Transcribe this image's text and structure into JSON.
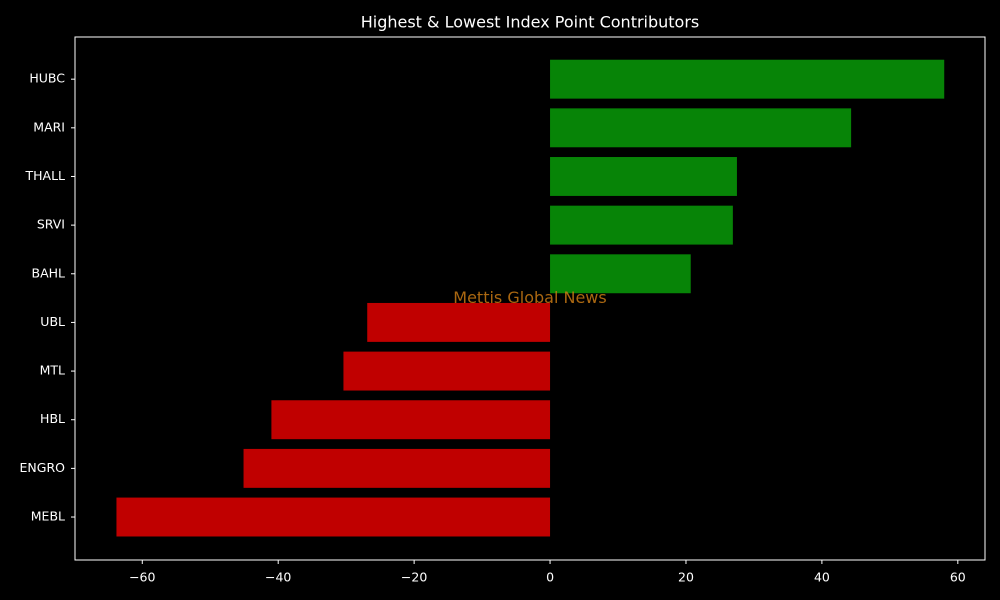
{
  "chart_data": {
    "type": "barh",
    "title": "Highest & Lowest Index Point Contributors",
    "watermark": "Mettis Global News",
    "categories": [
      "HUBC",
      "MARI",
      "THALL",
      "SRVI",
      "BAHL",
      "UBL",
      "MTL",
      "HBL",
      "ENGRO",
      "MEBL"
    ],
    "values": [
      58.0,
      44.3,
      27.5,
      26.9,
      20.7,
      -26.9,
      -30.4,
      -41.0,
      -45.1,
      -63.8
    ],
    "colors": [
      "#078407",
      "#078407",
      "#078407",
      "#078407",
      "#078407",
      "#c00000",
      "#c00000",
      "#c00000",
      "#c00000",
      "#c00000"
    ],
    "xlim": [
      -69.9,
      64.0
    ],
    "xticks": [
      {
        "value": -60,
        "label": "−60"
      },
      {
        "value": -40,
        "label": "−40"
      },
      {
        "value": -20,
        "label": "−20"
      },
      0,
      20,
      40,
      60
    ],
    "grid": false
  }
}
